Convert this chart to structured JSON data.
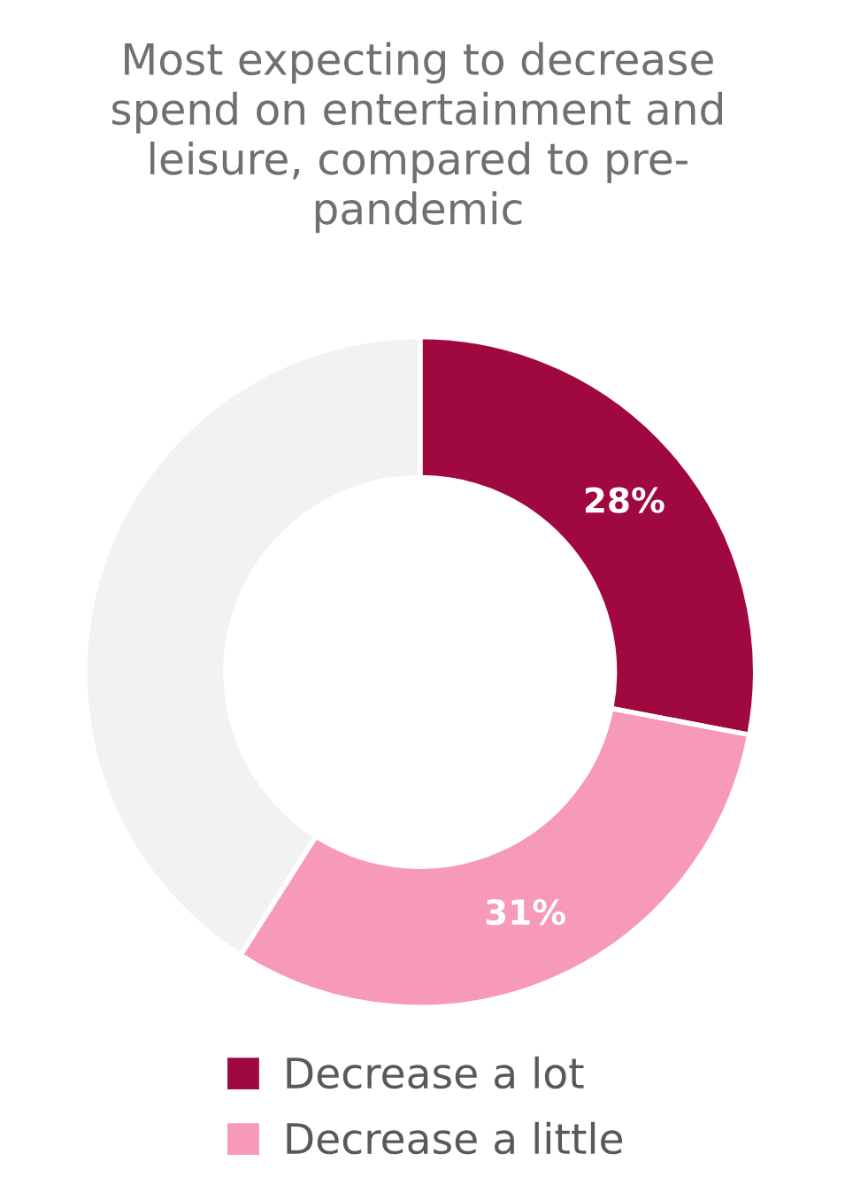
{
  "chart_data": {
    "type": "donut",
    "title": "Most expecting to decrease\nspend on entertainment and\nleisure, compared to pre-\npandemic",
    "categories": [
      "Decrease a lot",
      "Decrease a little",
      null
    ],
    "values": [
      28,
      31,
      41
    ],
    "colors": [
      "#a0093f",
      "#f799b9",
      "#f2f2f2"
    ],
    "value_labels": [
      "28%",
      "31%",
      null
    ],
    "legend": "bottom"
  }
}
